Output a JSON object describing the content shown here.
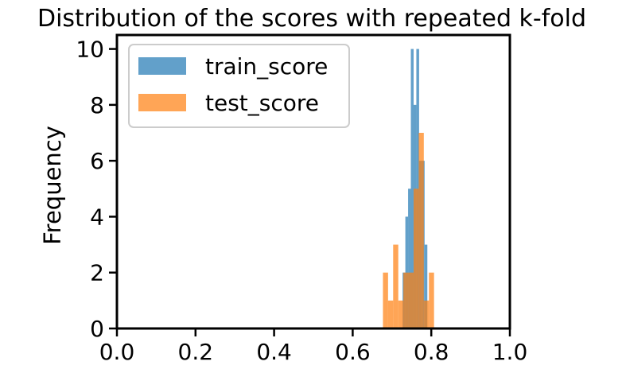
{
  "chart_data": {
    "type": "bar",
    "title": "Distribution of the scores with repeated k-fold",
    "xlabel": "",
    "ylabel": "Frequency",
    "xlim": [
      0.0,
      1.0
    ],
    "ylim": [
      0,
      10.5
    ],
    "xticks": [
      "0.0",
      "0.2",
      "0.4",
      "0.6",
      "0.8",
      "1.0"
    ],
    "yticks": [
      "0",
      "2",
      "4",
      "6",
      "8",
      "10"
    ],
    "legend_position": "top-left",
    "grid": false,
    "series": [
      {
        "name": "train_score",
        "color": "#1f77b4",
        "alpha": 0.7,
        "bin_edges": [
          0.727,
          0.734,
          0.741,
          0.748,
          0.755,
          0.762,
          0.769,
          0.776,
          0.783,
          0.79
        ],
        "counts": [
          2,
          4,
          5,
          10,
          8,
          10,
          6,
          6,
          3
        ]
      },
      {
        "name": "test_score",
        "color": "#ff7f0e",
        "alpha": 0.7,
        "bin_edges": [
          0.677,
          0.69,
          0.703,
          0.716,
          0.729,
          0.742,
          0.755,
          0.768,
          0.781,
          0.794,
          0.807
        ],
        "counts": [
          2,
          1,
          3,
          1,
          2,
          2,
          5,
          7,
          1,
          2
        ]
      }
    ]
  }
}
